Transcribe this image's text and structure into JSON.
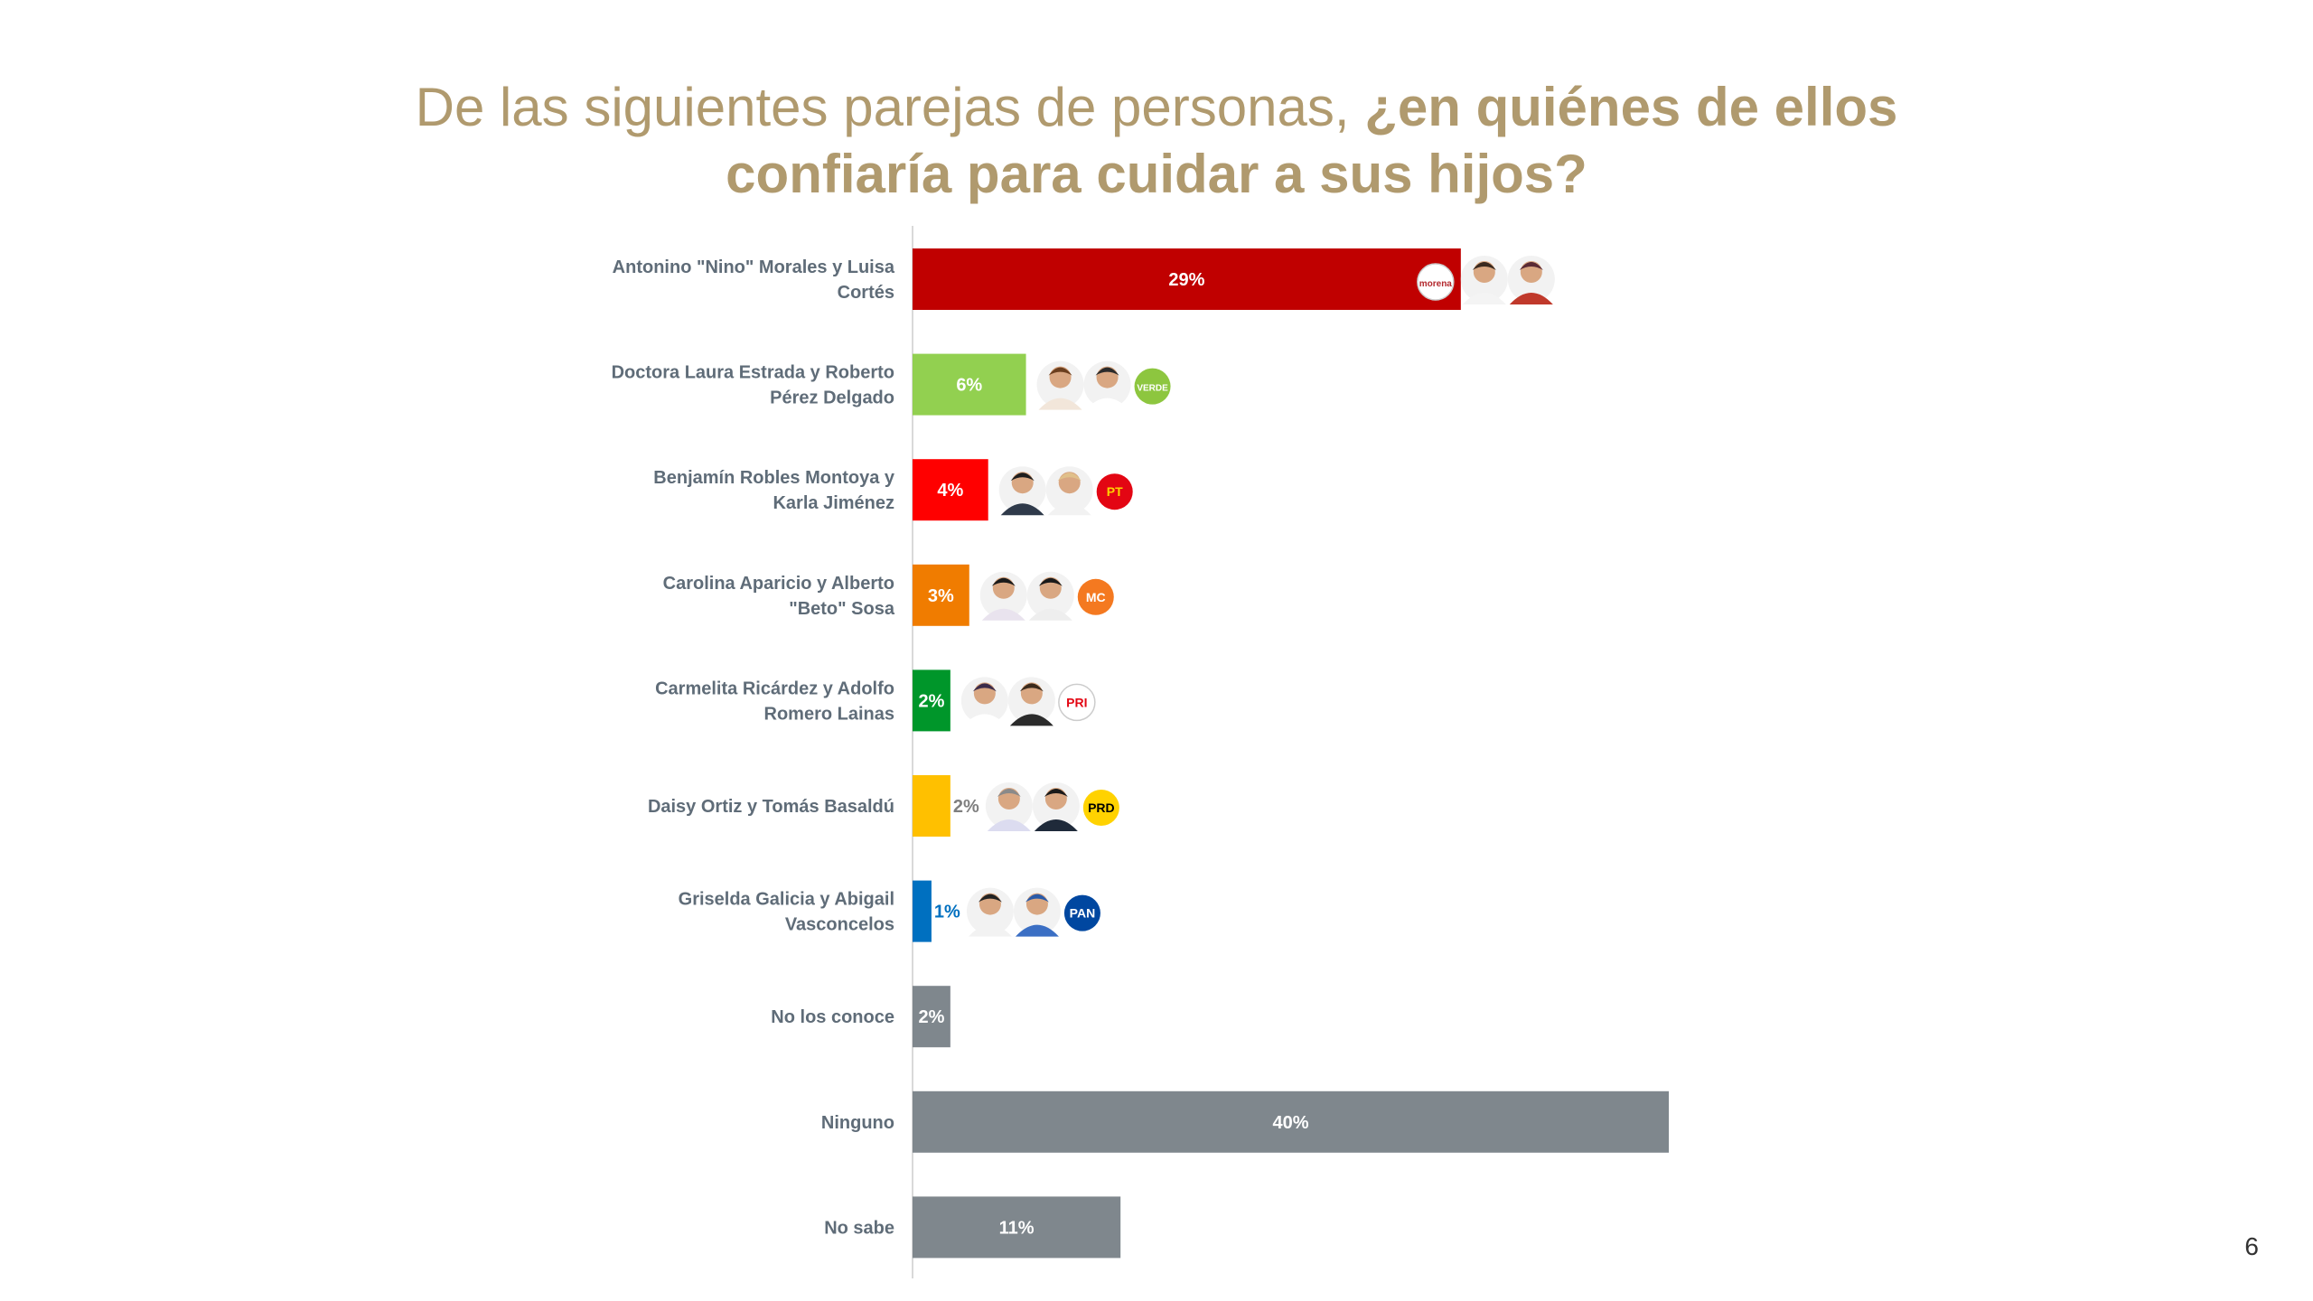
{
  "slide": {
    "title_regular": "De las siguientes parejas de personas, ",
    "title_bold_1": "¿en quiénes de ellos",
    "title_bold_2": "confiaría para cuidar a sus hijos?",
    "page_number": "6"
  },
  "chart_data": {
    "type": "bar",
    "orientation": "horizontal",
    "title": "De las siguientes parejas de personas, ¿en quiénes de ellos confiaría para cuidar a sus hijos?",
    "xlabel": "",
    "ylabel": "",
    "xlim": [
      0,
      40
    ],
    "unit": "%",
    "categories": [
      [
        "Antonino \"Nino\" Morales y Luisa",
        "Cortés"
      ],
      [
        "Doctora Laura Estrada y Roberto",
        "Pérez Delgado"
      ],
      [
        "Benjamín Robles Montoya y",
        "Karla Jiménez"
      ],
      [
        "Carolina Aparicio y Alberto",
        "\"Beto\" Sosa"
      ],
      [
        "Carmelita Ricárdez y Adolfo",
        "Romero Lainas"
      ],
      [
        "Daisy Ortiz y Tomás Basaldú"
      ],
      [
        "Griselda Galicia y Abigail",
        "Vasconcelos"
      ],
      [
        "No los conoce"
      ],
      [
        "Ninguno"
      ],
      [
        "No sabe"
      ]
    ],
    "values": [
      29,
      6,
      4,
      3,
      2,
      2,
      1,
      2,
      40,
      11
    ],
    "labels": [
      "29%",
      "6%",
      "4%",
      "3%",
      "2%",
      "2%",
      "1%",
      "2%",
      "40%",
      "11%"
    ],
    "colors": [
      "#c00000",
      "#92d050",
      "#ff0000",
      "#f07c00",
      "#00962a",
      "#ffc000",
      "#0070c0",
      "#7f878d",
      "#7f878d",
      "#7f878d"
    ],
    "label_inside": [
      true,
      true,
      true,
      true,
      true,
      false,
      false,
      true,
      true,
      true
    ],
    "outside_label_colors": [
      "",
      "",
      "",
      "",
      "",
      "#7f7f7f",
      "#0070c0",
      "",
      "",
      ""
    ],
    "party_logos": [
      {
        "name": "morena-logo",
        "text": "morena",
        "color": "#b3282d",
        "bg": "#ffffff"
      },
      {
        "name": "verde-logo",
        "text": "VERDE",
        "color": "#ffffff",
        "bg": "#8dc63f"
      },
      {
        "name": "pt-logo",
        "text": "PT",
        "color": "#ffd200",
        "bg": "#e30613"
      },
      {
        "name": "mc-logo",
        "text": "MC",
        "color": "#ffffff",
        "bg": "#f47920"
      },
      {
        "name": "pri-logo",
        "text": "PRI",
        "color": "#e30613",
        "bg": "#ffffff"
      },
      {
        "name": "prd-logo",
        "text": "PRD",
        "color": "#000000",
        "bg": "#ffd200"
      },
      {
        "name": "pan-logo",
        "text": "PAN",
        "color": "#ffffff",
        "bg": "#0047a0"
      }
    ]
  }
}
